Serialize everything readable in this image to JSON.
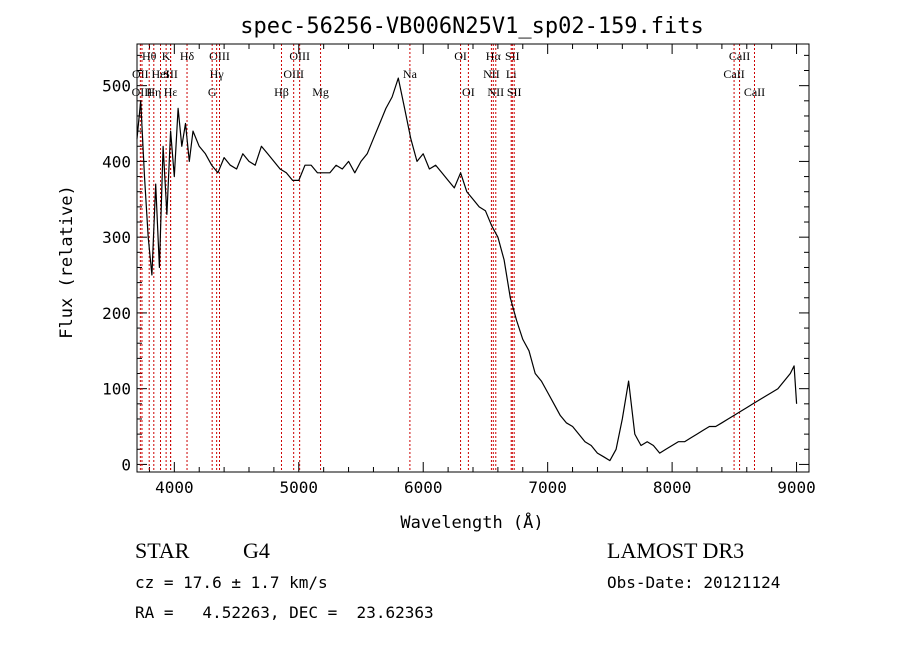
{
  "chart_data": {
    "type": "line",
    "title": "spec-56256-VB006N25V1_sp02-159.fits",
    "xlabel": "Wavelength (Å)",
    "ylabel": "Flux (relative)",
    "xlim": [
      3700,
      9100
    ],
    "ylim": [
      -10,
      555
    ],
    "xticks": [
      4000,
      5000,
      6000,
      7000,
      8000,
      9000
    ],
    "xtick_labels": [
      "4000",
      "5000",
      "6000",
      "7000",
      "8000",
      "9000"
    ],
    "yticks": [
      0,
      100,
      200,
      300,
      400,
      500
    ],
    "ytick_labels": [
      "0",
      "100",
      "200",
      "300",
      "400",
      "500"
    ],
    "series": [
      {
        "name": "flux",
        "x": [
          3700,
          3730,
          3760,
          3790,
          3820,
          3850,
          3880,
          3910,
          3940,
          3970,
          4000,
          4030,
          4060,
          4090,
          4120,
          4150,
          4200,
          4250,
          4300,
          4350,
          4400,
          4450,
          4500,
          4550,
          4600,
          4650,
          4700,
          4750,
          4800,
          4850,
          4900,
          4950,
          5000,
          5050,
          5100,
          5150,
          5200,
          5250,
          5300,
          5350,
          5400,
          5450,
          5500,
          5550,
          5600,
          5650,
          5700,
          5750,
          5800,
          5850,
          5900,
          5950,
          6000,
          6050,
          6100,
          6150,
          6200,
          6250,
          6300,
          6350,
          6400,
          6450,
          6500,
          6550,
          6600,
          6650,
          6700,
          6750,
          6800,
          6850,
          6900,
          6950,
          7000,
          7050,
          7100,
          7150,
          7200,
          7250,
          7300,
          7350,
          7400,
          7450,
          7500,
          7550,
          7600,
          7650,
          7700,
          7750,
          7800,
          7850,
          7900,
          7950,
          8000,
          8050,
          8100,
          8150,
          8200,
          8250,
          8300,
          8350,
          8400,
          8450,
          8500,
          8550,
          8600,
          8650,
          8700,
          8750,
          8800,
          8850,
          8900,
          8950,
          8980,
          9000
        ],
        "y": [
          430,
          480,
          380,
          300,
          250,
          370,
          260,
          420,
          330,
          440,
          380,
          470,
          420,
          450,
          400,
          440,
          420,
          410,
          395,
          385,
          405,
          395,
          390,
          410,
          400,
          395,
          420,
          410,
          400,
          390,
          385,
          375,
          375,
          395,
          395,
          385,
          385,
          385,
          395,
          390,
          400,
          385,
          400,
          410,
          430,
          450,
          470,
          485,
          510,
          470,
          430,
          400,
          410,
          390,
          395,
          385,
          375,
          365,
          385,
          360,
          350,
          340,
          335,
          315,
          300,
          270,
          220,
          190,
          165,
          150,
          120,
          110,
          95,
          80,
          65,
          55,
          50,
          40,
          30,
          25,
          15,
          10,
          5,
          20,
          60,
          110,
          40,
          25,
          30,
          25,
          15,
          20,
          25,
          30,
          30,
          35,
          40,
          45,
          50,
          50,
          55,
          60,
          65,
          70,
          75,
          80,
          85,
          90,
          95,
          100,
          110,
          120,
          130,
          80
        ]
      }
    ],
    "lines": [
      {
        "label": "Hθ",
        "x": 3798,
        "row": 0
      },
      {
        "label": "OII",
        "x": 3727,
        "row": 1
      },
      {
        "label": "OIII",
        "x": 3740,
        "row": 2
      },
      {
        "label": "Hη",
        "x": 3835,
        "row": 2
      },
      {
        "label": "HeI",
        "x": 3889,
        "row": 1
      },
      {
        "label": "K",
        "x": 3934,
        "row": 0
      },
      {
        "label": "SII",
        "x": 3970,
        "row": 1
      },
      {
        "label": "Hε",
        "x": 3970,
        "row": 2
      },
      {
        "label": "Hδ",
        "x": 4102,
        "row": 0
      },
      {
        "label": "OIII",
        "x": 4363,
        "row": 0
      },
      {
        "label": "Hγ",
        "x": 4340,
        "row": 1
      },
      {
        "label": "G",
        "x": 4304,
        "row": 2
      },
      {
        "label": "Hβ",
        "x": 4861,
        "row": 2
      },
      {
        "label": "OIII",
        "x": 5007,
        "row": 0
      },
      {
        "label": "OIII",
        "x": 4959,
        "row": 1
      },
      {
        "label": "Mg",
        "x": 5175,
        "row": 2
      },
      {
        "label": "Na",
        "x": 5893,
        "row": 1
      },
      {
        "label": "OI",
        "x": 6300,
        "row": 0
      },
      {
        "label": "OI",
        "x": 6363,
        "row": 2
      },
      {
        "label": "Hα",
        "x": 6563,
        "row": 0
      },
      {
        "label": "SII",
        "x": 6716,
        "row": 0
      },
      {
        "label": "NII",
        "x": 6548,
        "row": 1
      },
      {
        "label": "Li",
        "x": 6707,
        "row": 1
      },
      {
        "label": "NII",
        "x": 6583,
        "row": 2
      },
      {
        "label": "SII",
        "x": 6731,
        "row": 2
      },
      {
        "label": "CaII",
        "x": 8542,
        "row": 0
      },
      {
        "label": "CaII",
        "x": 8498,
        "row": 1
      },
      {
        "label": "CaII",
        "x": 8662,
        "row": 2
      }
    ],
    "line_color": "#cc0000",
    "series_color": "#000000"
  },
  "footer": {
    "class_label": "STAR",
    "subclass": "G4",
    "survey": "LAMOST DR3",
    "cz": "cz = 17.6 ± 1.7 km/s",
    "obs_date": "Obs-Date: 20121124",
    "coords": "RA =   4.52263, DEC =  23.62363"
  }
}
